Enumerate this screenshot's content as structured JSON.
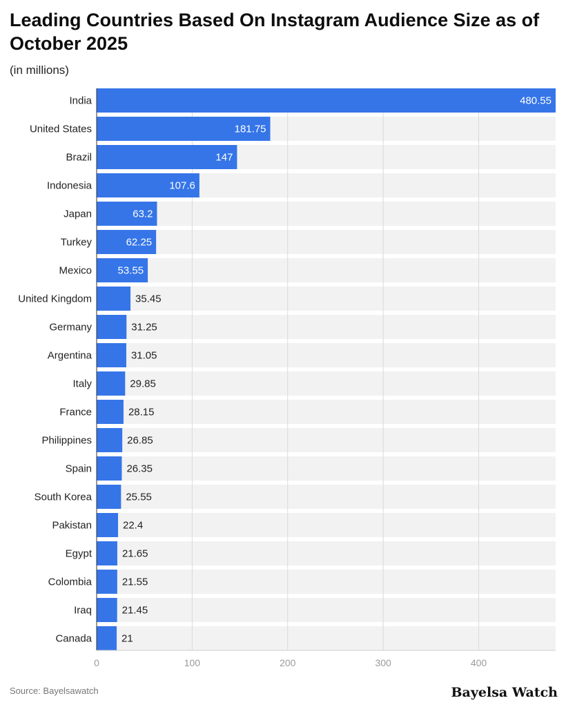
{
  "header": {
    "title": "Leading Countries Based On Instagram Audience Size as of October 2025",
    "subtitle": "(in millions)"
  },
  "footer": {
    "source": "Source: Bayelsawatch",
    "brand": "Bayelsa Watch"
  },
  "colors": {
    "bar": "#3575e8",
    "row_band": "#f2f2f2",
    "grid": "#d9d9d9",
    "label_inside": "#ffffff",
    "label_outside": "#222222",
    "tick": "#9a9a9a"
  },
  "chart_data": {
    "type": "bar",
    "orientation": "horizontal",
    "categories": [
      "India",
      "United States",
      "Brazil",
      "Indonesia",
      "Japan",
      "Turkey",
      "Mexico",
      "United Kingdom",
      "Germany",
      "Argentina",
      "Italy",
      "France",
      "Philippines",
      "Spain",
      "South Korea",
      "Pakistan",
      "Egypt",
      "Colombia",
      "Iraq",
      "Canada"
    ],
    "values": [
      480.55,
      181.75,
      147,
      107.6,
      63.2,
      62.25,
      53.55,
      35.45,
      31.25,
      31.05,
      29.85,
      28.15,
      26.85,
      26.35,
      25.55,
      22.4,
      21.65,
      21.55,
      21.45,
      21
    ],
    "value_labels": [
      "480.55",
      "181.75",
      "147",
      "107.6",
      "63.2",
      "62.25",
      "53.55",
      "35.45",
      "31.25",
      "31.05",
      "29.85",
      "28.15",
      "26.85",
      "26.35",
      "25.55",
      "22.4",
      "21.65",
      "21.55",
      "21.45",
      "21"
    ],
    "xticks": [
      0,
      100,
      200,
      300,
      400
    ],
    "xlim": [
      0,
      480.55
    ],
    "grid": true,
    "legend": "none"
  }
}
